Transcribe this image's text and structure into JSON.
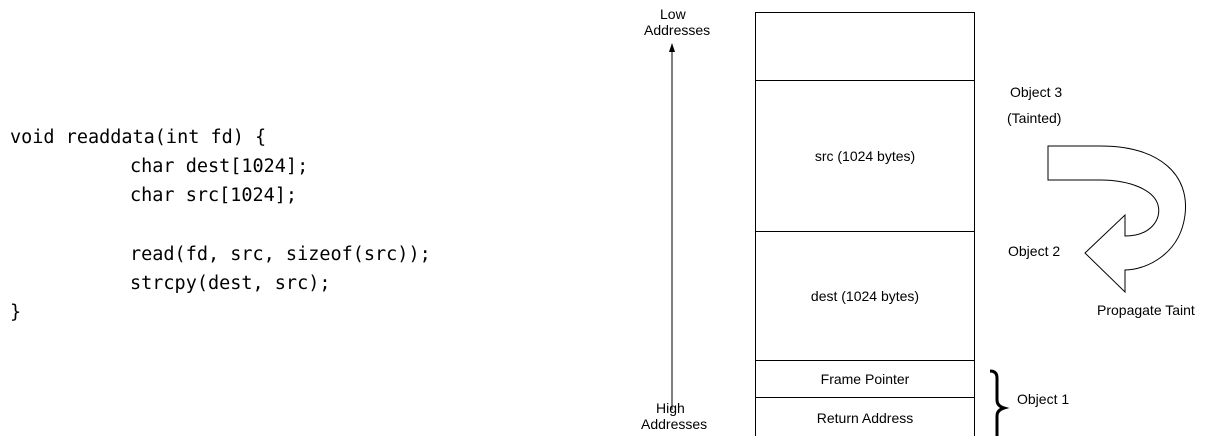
{
  "code": {
    "lines": [
      "void readdata(int fd) {",
      "char dest[1024];",
      "char src[1024];",
      "",
      "read(fd, src, sizeof(src));",
      "strcpy(dest, src);",
      "}"
    ]
  },
  "axis": {
    "low_label": "Low",
    "low_label_2": "Addresses",
    "high_label": "High",
    "high_label_2": "Addresses"
  },
  "stack": {
    "cells": [
      "",
      "src (1024 bytes)",
      "dest (1024 bytes)",
      "Frame Pointer",
      "Return Address"
    ]
  },
  "objects": {
    "object3": "Object 3",
    "object3_sub": "(Tainted)",
    "object2": "Object 2",
    "object1": "Object 1",
    "propagate": "Propagate Taint"
  }
}
